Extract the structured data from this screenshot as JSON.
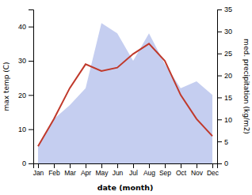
{
  "chart_data": {
    "type": "line",
    "xlabel": "date (month)",
    "ylabel": "max temp (C)",
    "y2label": "med. precipitation (kg/m2)",
    "categories": [
      "Jan",
      "Feb",
      "Mar",
      "Apr",
      "May",
      "Jun",
      "Jul",
      "Aug",
      "Sep",
      "Oct",
      "Nov",
      "Dec"
    ],
    "series": [
      {
        "type": "area",
        "color": "#c5cef0",
        "values": [
          5,
          13,
          17,
          22,
          41,
          38,
          30,
          38,
          29,
          22,
          24,
          20
        ]
      },
      {
        "type": "line",
        "color": "#c0392b",
        "values": [
          5,
          13,
          22,
          29,
          27,
          28,
          32,
          35,
          30,
          20,
          13,
          8
        ]
      }
    ],
    "ylim": [
      0,
      45
    ],
    "yticks": [
      0,
      10,
      20,
      30,
      40
    ],
    "y2lim": [
      0,
      35
    ],
    "y2ticks": [
      0,
      5,
      10,
      15,
      20,
      25,
      30,
      35
    ]
  }
}
